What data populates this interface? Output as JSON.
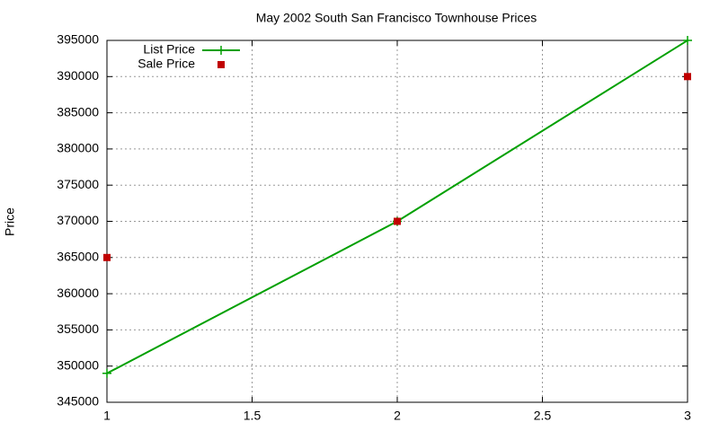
{
  "chart_data": {
    "type": "line",
    "title": "May 2002 South San Francisco Townhouse Prices",
    "y_label": "Price",
    "x": [
      1,
      2,
      3
    ],
    "series": [
      {
        "name": "List Price",
        "color": "#00a000",
        "style": "linespoints",
        "marker": "plus",
        "values": [
          349000,
          370000,
          395000
        ]
      },
      {
        "name": "Sale Price",
        "color": "#c00000",
        "style": "points",
        "marker": "square",
        "values": [
          365000,
          370000,
          390000
        ]
      }
    ],
    "xlim": [
      1,
      3
    ],
    "xticks": [
      1,
      1.5,
      2,
      2.5,
      3
    ],
    "ylim": [
      345000,
      395000
    ],
    "yticks": [
      345000,
      350000,
      355000,
      360000,
      365000,
      370000,
      375000,
      380000,
      385000,
      390000,
      395000
    ],
    "grid": true,
    "legend": "top-left"
  }
}
